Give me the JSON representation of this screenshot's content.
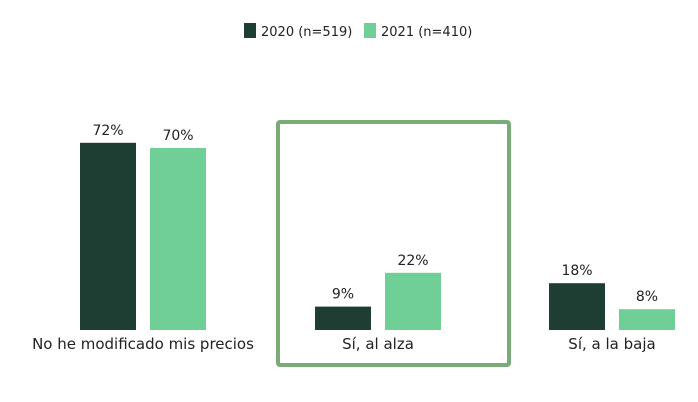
{
  "chart_data": {
    "type": "bar",
    "categories": [
      "No he modificado mis precios",
      "Sí, al alza",
      "Sí, a la baja"
    ],
    "series": [
      {
        "name": "2020 (n=519)",
        "values": [
          72,
          9,
          18
        ],
        "labels": [
          "72%",
          "9%",
          "18%"
        ],
        "color": "#1e3d33"
      },
      {
        "name": "2021 (n=410)",
        "values": [
          70,
          22,
          8
        ],
        "labels": [
          "70%",
          "22%",
          "8%"
        ],
        "color": "#6fcf97"
      }
    ],
    "unit": "%",
    "ylim": [
      0,
      100
    ],
    "legend_position": "top-center",
    "highlight": {
      "category": "Sí, al alza",
      "color": "#7aab77"
    },
    "grid": false
  }
}
